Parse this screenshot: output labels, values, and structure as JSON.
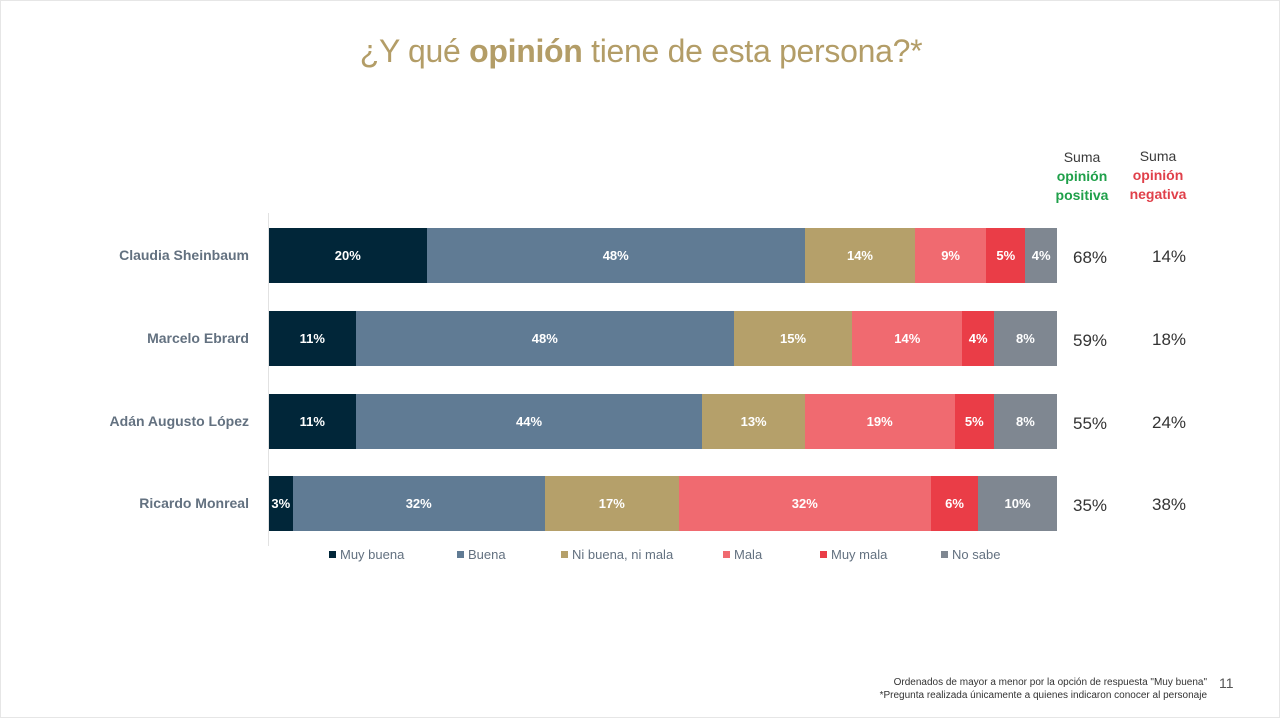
{
  "title": {
    "pre": "¿Y qué ",
    "bold": "opinión",
    "post": " tiene de esta persona?*"
  },
  "headers": {
    "positive": [
      "Suma",
      "opinión",
      "positiva"
    ],
    "negative": [
      "Suma",
      "opinión",
      "negativa"
    ]
  },
  "footnotes": [
    "Ordenados de mayor a menor por la opción de respuesta \"Muy buena\"",
    "*Pregunta realizada únicamente a quienes indicaron conocer al personaje"
  ],
  "page_number": "11",
  "chart_data": {
    "type": "bar",
    "orientation": "horizontal",
    "stacked": true,
    "normalized_percent": true,
    "title": "¿Y qué opinión tiene de esta persona?*",
    "categories": [
      "Claudia Sheinbaum",
      "Marcelo Ebrard",
      "Adán Augusto López",
      "Ricardo Monreal"
    ],
    "series": [
      {
        "name": "Muy buena",
        "color": "#012639",
        "text_color": "#ffffff",
        "values": [
          20,
          11,
          11,
          3
        ],
        "labels": [
          "20%",
          "11%",
          "11%",
          "3%"
        ]
      },
      {
        "name": "Buena",
        "color": "#607b94",
        "text_color": "#ffffff",
        "values": [
          48,
          48,
          44,
          32
        ],
        "labels": [
          "48%",
          "48%",
          "44%",
          "32%"
        ]
      },
      {
        "name": "Ni buena, ni mala",
        "color": "#b5a06a",
        "text_color": "#ffffff",
        "values": [
          14,
          15,
          13,
          17
        ],
        "labels": [
          "14%",
          "15%",
          "13%",
          "17%"
        ]
      },
      {
        "name": "Mala",
        "color": "#f06a70",
        "text_color": "#ffffff",
        "values": [
          9,
          14,
          19,
          32
        ],
        "labels": [
          "9%",
          "14%",
          "19%",
          "32%"
        ]
      },
      {
        "name": "Muy mala",
        "color": "#ea3d47",
        "text_color": "#ffffff",
        "values": [
          5,
          4,
          5,
          6
        ],
        "labels": [
          "5%",
          "4%",
          "5%",
          "6%"
        ]
      },
      {
        "name": "No sabe",
        "color": "#7f8791",
        "text_color": "#ffffff",
        "values": [
          4,
          8,
          8,
          10
        ],
        "labels": [
          "4%",
          "8%",
          "8%",
          "10%"
        ]
      }
    ],
    "suma_positiva": [
      "68%",
      "59%",
      "55%",
      "35%"
    ],
    "suma_negativa": [
      "14%",
      "18%",
      "24%",
      "38%"
    ],
    "legend_position": "bottom",
    "grid": false
  }
}
